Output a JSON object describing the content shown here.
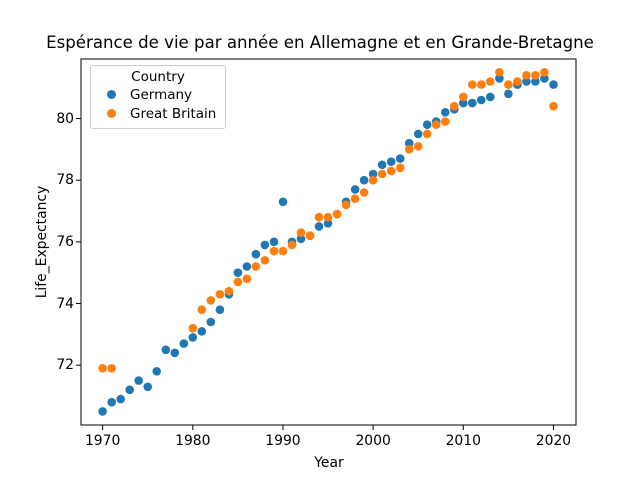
{
  "figure": {
    "title": "Espérance de vie par année en Allemagne et en Grande-Bretagne",
    "xlabel": "Year",
    "ylabel": "Life_Expectancy",
    "background_color": "#ffffff",
    "text_color": "#000000"
  },
  "legend": {
    "title": "Country",
    "position": "upper left",
    "items": [
      {
        "label": "Germany",
        "color": "#1f77b4",
        "marker": "dot"
      },
      {
        "label": "Great Britain",
        "color": "#ff7f0e",
        "marker": "dot"
      }
    ]
  },
  "chart_data": {
    "type": "scatter",
    "title": "Espérance de vie par année en Allemagne et en Grande-Bretagne",
    "xlabel": "Year",
    "ylabel": "Life_Expectancy",
    "xlim": [
      1967.6,
      2022.5
    ],
    "ylim": [
      70.06,
      81.93
    ],
    "x_ticks": [
      1970,
      1980,
      1990,
      2000,
      2010,
      2020
    ],
    "y_ticks": [
      72,
      74,
      76,
      78,
      80
    ],
    "grid": false,
    "legend_position": "upper left",
    "series": [
      {
        "name": "Germany",
        "color": "#1f77b4",
        "points": [
          [
            1970,
            70.5
          ],
          [
            1971,
            70.8
          ],
          [
            1972,
            70.9
          ],
          [
            1973,
            71.2
          ],
          [
            1974,
            71.5
          ],
          [
            1975,
            71.3
          ],
          [
            1976,
            71.8
          ],
          [
            1977,
            72.5
          ],
          [
            1978,
            72.4
          ],
          [
            1979,
            72.7
          ],
          [
            1980,
            72.9
          ],
          [
            1981,
            73.1
          ],
          [
            1982,
            73.4
          ],
          [
            1983,
            73.8
          ],
          [
            1984,
            74.3
          ],
          [
            1985,
            75.0
          ],
          [
            1986,
            75.2
          ],
          [
            1987,
            75.6
          ],
          [
            1988,
            75.9
          ],
          [
            1989,
            76.0
          ],
          [
            1990,
            77.3
          ],
          [
            1991,
            76.0
          ],
          [
            1992,
            76.1
          ],
          [
            1993,
            76.2
          ],
          [
            1994,
            76.5
          ],
          [
            1995,
            76.6
          ],
          [
            1996,
            76.9
          ],
          [
            1997,
            77.3
          ],
          [
            1998,
            77.7
          ],
          [
            1999,
            78.0
          ],
          [
            2000,
            78.2
          ],
          [
            2001,
            78.5
          ],
          [
            2002,
            78.6
          ],
          [
            2003,
            78.7
          ],
          [
            2004,
            79.2
          ],
          [
            2005,
            79.5
          ],
          [
            2006,
            79.8
          ],
          [
            2007,
            79.9
          ],
          [
            2008,
            80.2
          ],
          [
            2009,
            80.3
          ],
          [
            2010,
            80.5
          ],
          [
            2011,
            80.5
          ],
          [
            2012,
            80.6
          ],
          [
            2013,
            80.7
          ],
          [
            2014,
            81.3
          ],
          [
            2015,
            80.8
          ],
          [
            2016,
            81.1
          ],
          [
            2017,
            81.2
          ],
          [
            2018,
            81.2
          ],
          [
            2019,
            81.3
          ],
          [
            2020,
            81.1
          ]
        ]
      },
      {
        "name": "Great Britain",
        "color": "#ff7f0e",
        "points": [
          [
            1970,
            71.9
          ],
          [
            1971,
            71.9
          ],
          [
            1980,
            73.2
          ],
          [
            1981,
            73.8
          ],
          [
            1982,
            74.1
          ],
          [
            1983,
            74.3
          ],
          [
            1984,
            74.4
          ],
          [
            1985,
            74.7
          ],
          [
            1986,
            74.8
          ],
          [
            1987,
            75.2
          ],
          [
            1988,
            75.4
          ],
          [
            1989,
            75.7
          ],
          [
            1990,
            75.7
          ],
          [
            1991,
            75.9
          ],
          [
            1992,
            76.3
          ],
          [
            1993,
            76.2
          ],
          [
            1994,
            76.8
          ],
          [
            1995,
            76.8
          ],
          [
            1996,
            76.9
          ],
          [
            1997,
            77.2
          ],
          [
            1998,
            77.4
          ],
          [
            1999,
            77.6
          ],
          [
            2000,
            78.0
          ],
          [
            2001,
            78.2
          ],
          [
            2002,
            78.3
          ],
          [
            2003,
            78.4
          ],
          [
            2004,
            79.0
          ],
          [
            2005,
            79.1
          ],
          [
            2006,
            79.5
          ],
          [
            2007,
            79.8
          ],
          [
            2008,
            79.9
          ],
          [
            2009,
            80.4
          ],
          [
            2010,
            80.7
          ],
          [
            2011,
            81.1
          ],
          [
            2012,
            81.1
          ],
          [
            2013,
            81.2
          ],
          [
            2014,
            81.5
          ],
          [
            2015,
            81.1
          ],
          [
            2016,
            81.2
          ],
          [
            2017,
            81.4
          ],
          [
            2018,
            81.4
          ],
          [
            2019,
            81.5
          ],
          [
            2020,
            80.4
          ]
        ]
      }
    ]
  }
}
